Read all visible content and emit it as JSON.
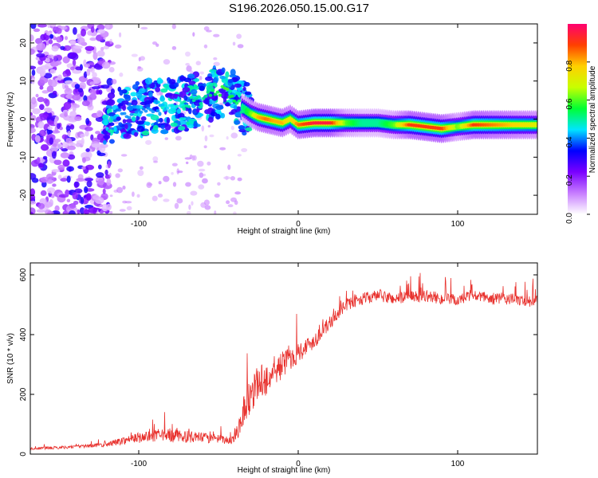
{
  "figure": {
    "title": "S196.2026.050.15.00.G17"
  },
  "chart_data": [
    {
      "type": "heatmap",
      "xlabel": "Height of straight line (km)",
      "ylabel": "Frequency (Hz)",
      "xlim": [
        -168,
        150
      ],
      "ylim": [
        -25,
        25
      ],
      "xticks": [
        -100,
        0,
        100
      ],
      "xtick_labels": [
        "-100",
        "0",
        "100"
      ],
      "yticks": [
        -20,
        -10,
        0,
        10,
        20
      ],
      "ytick_labels": [
        "-20",
        "-10",
        "0",
        "10",
        "20"
      ],
      "colorbar": {
        "label": "Normalized spectral amplitude",
        "range": [
          0.0,
          1.0
        ],
        "ticks": [
          0.0,
          0.2,
          0.4,
          0.6,
          0.8
        ],
        "tick_labels": [
          "0.0",
          "0.2",
          "0.4",
          "0.6",
          "0.8"
        ],
        "colormap": [
          "#ffffff",
          "#c77dff",
          "#7a00ff",
          "#0000ff",
          "#00e5ff",
          "#00ff33",
          "#c8ff00",
          "#ffd000",
          "#ff4000",
          "#ff0070"
        ]
      },
      "ridge": {
        "x": [
          -120,
          -110,
          -100,
          -90,
          -80,
          -70,
          -60,
          -50,
          -45,
          -40,
          -35,
          -30,
          -25,
          -20,
          -15,
          -10,
          -5,
          0,
          10,
          20,
          30,
          40,
          50,
          60,
          70,
          80,
          90,
          100,
          110,
          120,
          130,
          140,
          150
        ],
        "freq": [
          0.5,
          1.5,
          2.5,
          3.5,
          3.5,
          4.0,
          5.5,
          7.5,
          7.0,
          5.0,
          3.0,
          1.5,
          0.5,
          0.0,
          -0.5,
          -1.0,
          0.0,
          -1.5,
          -1.0,
          -1.0,
          -1.0,
          -1.0,
          -1.0,
          -1.5,
          -1.5,
          -2.0,
          -2.5,
          -2.0,
          -1.5,
          -1.5,
          -1.5,
          -1.5,
          -1.5
        ],
        "amplitude": [
          0.35,
          0.4,
          0.4,
          0.4,
          0.45,
          0.5,
          0.5,
          0.55,
          0.6,
          0.55,
          0.5,
          0.6,
          0.8,
          0.85,
          0.8,
          0.8,
          0.7,
          0.85,
          0.95,
          0.95,
          0.6,
          0.5,
          0.5,
          0.6,
          0.9,
          0.9,
          0.9,
          0.6,
          0.9,
          0.85,
          0.8,
          0.75,
          0.7
        ]
      }
    },
    {
      "type": "line",
      "xlabel": "Height of straight line (km)",
      "ylabel": "SNR (10 * v/v)",
      "xlim": [
        -168,
        150
      ],
      "ylim": [
        0,
        640
      ],
      "xticks": [
        -100,
        0,
        100
      ],
      "xtick_labels": [
        "-100",
        "0",
        "100"
      ],
      "yticks": [
        0,
        200,
        400,
        600
      ],
      "ytick_labels": [
        "0",
        "200",
        "400",
        "600"
      ],
      "series": [
        {
          "name": "SNR",
          "color": "#e8322e",
          "x": [
            -168,
            -150,
            -130,
            -120,
            -110,
            -100,
            -90,
            -80,
            -70,
            -60,
            -50,
            -42,
            -38,
            -34,
            -30,
            -25,
            -20,
            -15,
            -10,
            -5,
            0,
            5,
            10,
            15,
            20,
            25,
            30,
            40,
            50,
            60,
            70,
            80,
            90,
            100,
            110,
            120,
            130,
            140,
            150
          ],
          "y": [
            18,
            22,
            28,
            32,
            45,
            55,
            60,
            62,
            58,
            55,
            50,
            45,
            80,
            150,
            200,
            240,
            250,
            270,
            300,
            320,
            340,
            360,
            380,
            410,
            440,
            470,
            500,
            520,
            530,
            520,
            525,
            530,
            520,
            515,
            530,
            520,
            520,
            515,
            510
          ],
          "noise": [
            8,
            10,
            12,
            15,
            25,
            35,
            40,
            45,
            40,
            35,
            30,
            25,
            60,
            110,
            130,
            120,
            110,
            100,
            90,
            80,
            70,
            60,
            55,
            50,
            45,
            40,
            40,
            40,
            40,
            40,
            40,
            40,
            40,
            40,
            40,
            40,
            40,
            40,
            40
          ]
        }
      ]
    }
  ]
}
